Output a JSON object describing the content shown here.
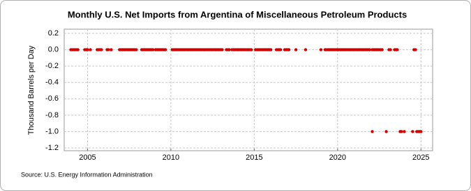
{
  "chart_data": {
    "type": "scatter",
    "title": "Monthly U.S. Net Imports from Argentina of Miscellaneous Petroleum Products",
    "y_label": "Thousand Barrels per Day",
    "source": "Source: U.S. Energy Information Administration",
    "color": "#cc0000",
    "xlim": [
      2003.6,
      2025.7
    ],
    "xticks": [
      2005,
      2010,
      2015,
      2020,
      2025
    ],
    "ylim": [
      -1.2,
      0.2
    ],
    "yticks": [
      0.2,
      {
        "value": 0,
        "label": "0.0"
      },
      -0.2,
      -0.4,
      -0.6,
      -0.8,
      {
        "value": -1,
        "label": "-1.0"
      },
      -1.2
    ],
    "grid": true,
    "x": [
      2004.0,
      2004.08,
      2004.17,
      2004.25,
      2004.33,
      2004.42,
      2004.83,
      2004.92,
      2005.0,
      2005.17,
      2005.58,
      2005.67,
      2005.75,
      2005.83,
      2006.17,
      2006.25,
      2006.42,
      2006.92,
      2007.0,
      2007.08,
      2007.17,
      2007.25,
      2007.33,
      2007.42,
      2007.5,
      2007.58,
      2007.67,
      2007.75,
      2007.83,
      2007.92,
      2008.25,
      2008.33,
      2008.42,
      2008.5,
      2008.58,
      2008.67,
      2008.75,
      2008.83,
      2008.92,
      2009.08,
      2009.17,
      2009.25,
      2009.33,
      2009.42,
      2009.5,
      2009.58,
      2009.67,
      2010.08,
      2010.17,
      2010.25,
      2010.33,
      2010.42,
      2010.5,
      2010.58,
      2010.67,
      2010.75,
      2010.83,
      2010.92,
      2011.0,
      2011.08,
      2011.17,
      2011.25,
      2011.33,
      2011.42,
      2011.5,
      2011.58,
      2011.67,
      2011.75,
      2011.83,
      2011.92,
      2012.0,
      2012.08,
      2012.17,
      2012.25,
      2012.33,
      2012.42,
      2012.5,
      2012.58,
      2012.67,
      2012.75,
      2012.83,
      2012.92,
      2013.0,
      2013.08,
      2013.33,
      2013.42,
      2013.5,
      2013.67,
      2013.75,
      2013.83,
      2013.92,
      2014.0,
      2014.08,
      2014.17,
      2014.25,
      2014.33,
      2014.42,
      2014.5,
      2014.58,
      2014.67,
      2014.75,
      2014.83,
      2015.08,
      2015.17,
      2015.25,
      2015.33,
      2015.42,
      2015.5,
      2015.58,
      2015.67,
      2015.75,
      2015.83,
      2015.92,
      2016.0,
      2016.33,
      2016.42,
      2016.5,
      2016.58,
      2016.83,
      2016.92,
      2017.0,
      2017.08,
      2017.5,
      2018.08,
      2019.0,
      2019.25,
      2019.33,
      2019.42,
      2019.5,
      2019.58,
      2019.67,
      2019.75,
      2019.83,
      2019.92,
      2020.0,
      2020.08,
      2020.17,
      2020.25,
      2020.33,
      2020.42,
      2020.5,
      2020.58,
      2020.67,
      2020.75,
      2020.83,
      2020.92,
      2021.0,
      2021.08,
      2021.17,
      2021.25,
      2021.33,
      2021.42,
      2021.5,
      2021.58,
      2021.67,
      2021.75,
      2021.83,
      2021.92,
      2022.08,
      2022.17,
      2022.25,
      2022.33,
      2022.42,
      2022.5,
      2022.58,
      2022.67,
      2023.08,
      2023.17,
      2023.42,
      2023.5,
      2023.58,
      2024.58,
      2024.67,
      2022.08,
      2022.92,
      2023.75,
      2023.83,
      2024.0,
      2024.5,
      2024.75,
      2024.83,
      2024.92,
      2025.0
    ],
    "values": [
      0,
      0,
      0,
      0,
      0,
      0,
      0,
      0,
      0,
      0,
      0,
      0,
      0,
      0,
      0,
      0,
      0,
      0,
      0,
      0,
      0,
      0,
      0,
      0,
      0,
      0,
      0,
      0,
      0,
      0,
      0,
      0,
      0,
      0,
      0,
      0,
      0,
      0,
      0,
      0,
      0,
      0,
      0,
      0,
      0,
      0,
      0,
      0,
      0,
      0,
      0,
      0,
      0,
      0,
      0,
      0,
      0,
      0,
      0,
      0,
      0,
      0,
      0,
      0,
      0,
      0,
      0,
      0,
      0,
      0,
      0,
      0,
      0,
      0,
      0,
      0,
      0,
      0,
      0,
      0,
      0,
      0,
      0,
      0,
      0,
      0,
      0,
      0,
      0,
      0,
      0,
      0,
      0,
      0,
      0,
      0,
      0,
      0,
      0,
      0,
      0,
      0,
      0,
      0,
      0,
      0,
      0,
      0,
      0,
      0,
      0,
      0,
      0,
      0,
      0,
      0,
      0,
      0,
      0,
      0,
      0,
      0,
      0,
      0,
      0,
      0,
      0,
      0,
      0,
      0,
      0,
      0,
      0,
      0,
      0,
      0,
      0,
      0,
      0,
      0,
      0,
      0,
      0,
      0,
      0,
      0,
      0,
      0,
      0,
      0,
      0,
      0,
      0,
      0,
      0,
      0,
      0,
      0,
      0,
      0,
      0,
      0,
      0,
      0,
      0,
      0,
      0,
      0,
      0,
      0,
      0,
      0,
      0,
      -1,
      -1,
      -1,
      -1,
      -1,
      -1,
      -1,
      -1,
      -1,
      -1
    ]
  }
}
